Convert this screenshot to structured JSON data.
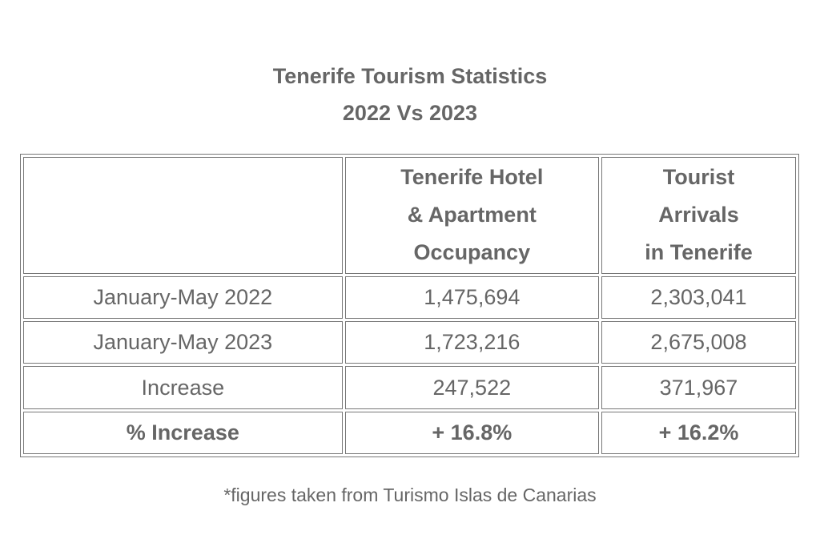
{
  "title": {
    "line1": "Tenerife Tourism Statistics",
    "line2": "2022 Vs 2023"
  },
  "table": {
    "headers": {
      "col0": "",
      "col1": [
        "Tenerife Hotel",
        "& Apartment",
        "Occupancy"
      ],
      "col2": [
        "Tourist",
        "Arrivals",
        "in Tenerife"
      ]
    },
    "rows": [
      [
        "January-May 2022",
        "1,475,694",
        "2,303,041"
      ],
      [
        "January-May 2023",
        "1,723,216",
        "2,675,008"
      ],
      [
        "Increase",
        "247,522",
        "371,967"
      ],
      [
        "% Increase",
        "+ 16.8%",
        "+ 16.2%"
      ]
    ]
  },
  "footnote": "*figures taken from Turismo Islas de Canarias"
}
